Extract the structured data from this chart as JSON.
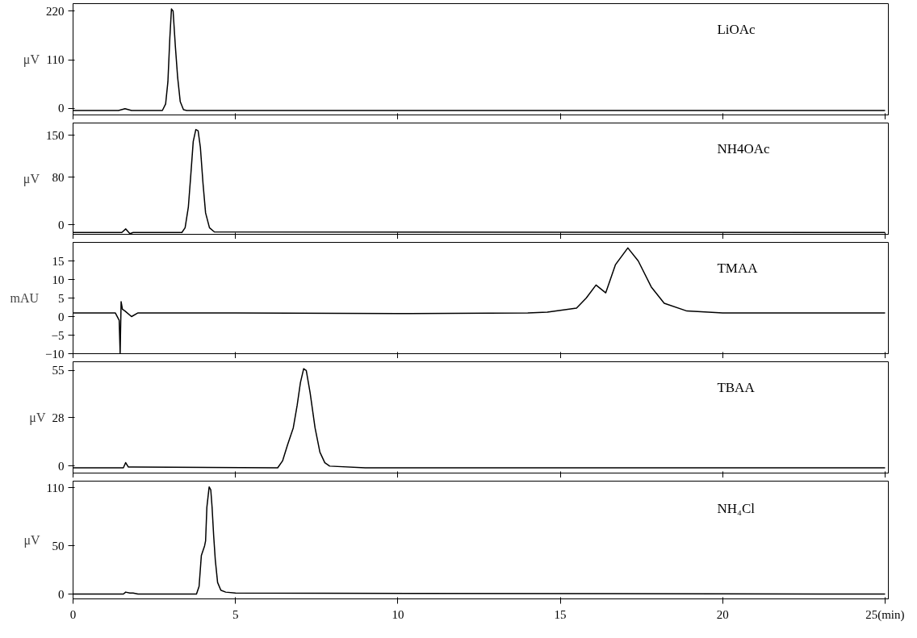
{
  "chart_data": [
    {
      "type": "line",
      "ylabel": "μV",
      "annotations": [
        "LiOAc"
      ],
      "color": "#000000",
      "x": [
        0,
        1.4,
        1.6,
        1.8,
        2.75,
        2.85,
        2.92,
        2.98,
        3.03,
        3.08,
        3.15,
        3.22,
        3.3,
        3.4,
        3.5,
        25
      ],
      "values": [
        -5,
        -5,
        -1,
        -5,
        -5,
        10,
        60,
        160,
        225,
        220,
        140,
        70,
        15,
        -3,
        -5,
        -5
      ],
      "xlim": [
        0,
        25.1
      ],
      "xticks": [
        0,
        5,
        10,
        15,
        20,
        25
      ],
      "ylim": [
        -15,
        237
      ],
      "yticks": [
        0,
        110,
        220
      ],
      "tick_labels": "y"
    },
    {
      "type": "line",
      "ylabel": "μV",
      "annotations": [
        "NH4OAc"
      ],
      "color": "#000000",
      "x": [
        0,
        1.5,
        1.62,
        1.75,
        1.85,
        3.35,
        3.45,
        3.55,
        3.62,
        3.7,
        3.78,
        3.85,
        3.92,
        4.0,
        4.08,
        4.2,
        4.35,
        25
      ],
      "values": [
        -13,
        -13,
        -7,
        -15,
        -13,
        -13,
        -5,
        30,
        80,
        140,
        160,
        158,
        130,
        70,
        20,
        -5,
        -12,
        -13
      ],
      "xlim": [
        0,
        25.1
      ],
      "xticks": [
        0,
        5,
        10,
        15,
        20,
        25
      ],
      "ylim": [
        -16,
        171
      ],
      "yticks": [
        0,
        80,
        150
      ],
      "tick_labels": "y"
    },
    {
      "type": "line",
      "ylabel": "mAU",
      "annotations": [
        "TMAA"
      ],
      "color": "#000000",
      "x": [
        0,
        1.3,
        1.42,
        1.45,
        1.48,
        1.52,
        1.6,
        1.8,
        2,
        5,
        10,
        14,
        14.6,
        15.5,
        15.8,
        16.1,
        16.4,
        16.7,
        17.08,
        17.4,
        17.8,
        18.2,
        18.9,
        20,
        25
      ],
      "values": [
        1,
        1,
        -1,
        -10,
        4,
        2,
        1.5,
        0,
        1,
        1,
        0.8,
        1,
        1.2,
        2.3,
        5,
        8.5,
        6.4,
        14,
        18.5,
        15,
        8,
        3.6,
        1.5,
        1,
        1
      ],
      "xlim": [
        0,
        25.1
      ],
      "xticks": [
        0,
        5,
        10,
        15,
        20,
        25
      ],
      "ylim": [
        -10,
        20
      ],
      "yticks": [
        -10,
        -5,
        0,
        5,
        10,
        15
      ],
      "tick_labels": "y"
    },
    {
      "type": "line",
      "ylabel": "μV",
      "annotations": [
        "TBAA"
      ],
      "color": "#000000",
      "x": [
        0,
        1.55,
        1.62,
        1.7,
        1.85,
        6.3,
        6.45,
        6.6,
        6.78,
        6.9,
        7.0,
        7.1,
        7.18,
        7.3,
        7.45,
        7.6,
        7.75,
        7.9,
        9,
        25
      ],
      "values": [
        -1,
        -1,
        2,
        -0.5,
        -0.5,
        -1,
        3,
        12,
        22,
        35,
        48,
        56,
        55,
        42,
        22,
        8,
        2,
        0,
        -1,
        -1
      ],
      "xlim": [
        0,
        25.1
      ],
      "xticks": [
        0,
        5,
        10,
        15,
        20,
        25
      ],
      "ylim": [
        -4,
        60
      ],
      "yticks": [
        0,
        28,
        55
      ],
      "tick_labels": "y"
    },
    {
      "type": "line",
      "ylabel": "μV",
      "annotations": [
        "NH₄Cl"
      ],
      "color": "#000000",
      "x": [
        0,
        1.55,
        1.62,
        1.75,
        1.85,
        2,
        3.8,
        3.88,
        3.95,
        4.05,
        4.08,
        4.12,
        4.19,
        4.24,
        4.28,
        4.33,
        4.38,
        4.45,
        4.55,
        4.7,
        5.0,
        25
      ],
      "values": [
        0,
        0,
        2,
        1,
        1,
        0,
        0,
        8,
        40,
        50,
        55,
        90,
        111,
        108,
        90,
        60,
        35,
        12,
        4,
        2,
        1,
        0
      ],
      "xlim": [
        0,
        25.1
      ],
      "xticks": [
        0,
        5,
        10,
        15,
        20,
        {
          "value": 25,
          "label": "25(min)"
        }
      ],
      "ylim": [
        -5,
        117
      ],
      "yticks": [
        0,
        50,
        110
      ]
    }
  ]
}
